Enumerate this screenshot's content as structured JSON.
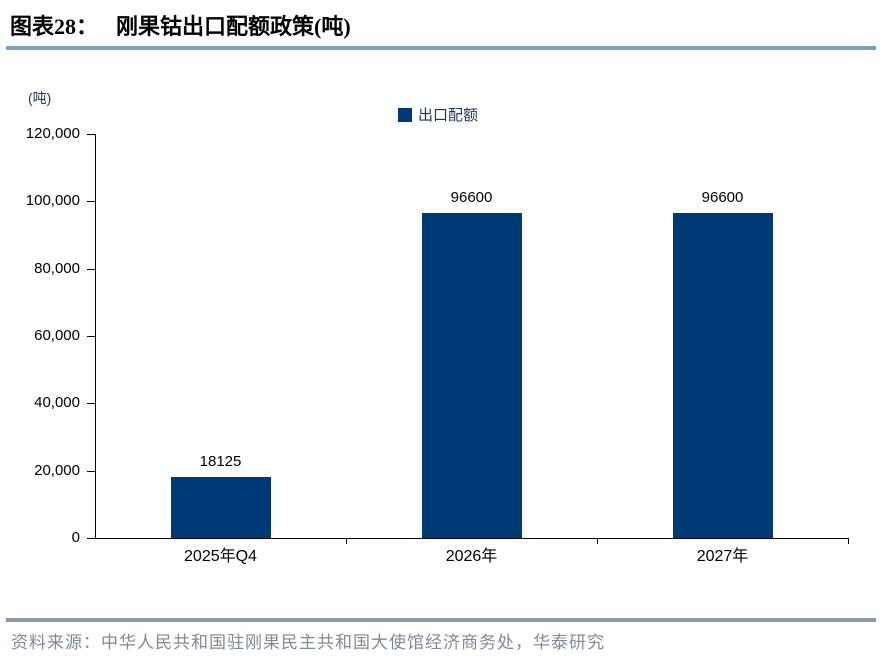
{
  "header": {
    "figure_label": "图表28：",
    "figure_title": "刚果钴出口配额政策(吨)"
  },
  "chart_data": {
    "type": "bar",
    "title": "刚果钴出口配额政策(吨)",
    "unit_label": "(吨)",
    "legend": [
      "出口配额"
    ],
    "legend_position": "top-center",
    "categories": [
      "2025年Q4",
      "2026年",
      "2027年"
    ],
    "series": [
      {
        "name": "出口配额",
        "values": [
          18125,
          96600,
          96600
        ]
      }
    ],
    "data_labels": [
      "18125",
      "96600",
      "96600"
    ],
    "ylim": [
      0,
      120000
    ],
    "ytick_interval": 20000,
    "ytick_labels": [
      "0",
      "20,000",
      "40,000",
      "60,000",
      "80,000",
      "100,000",
      "120,000"
    ],
    "grid": false,
    "bar_color": "#003A76"
  },
  "footer": {
    "source": "资料来源：中华人民共和国驻刚果民主共和国大使馆经济商务处，华泰研究"
  },
  "colors": {
    "bar": "#003A76",
    "title_rule": "#7E9EC4",
    "footer_rule": "#8A99AB",
    "source_text": "#7F8A99",
    "axis_text": "#000000",
    "legend_text": "#17375E"
  }
}
